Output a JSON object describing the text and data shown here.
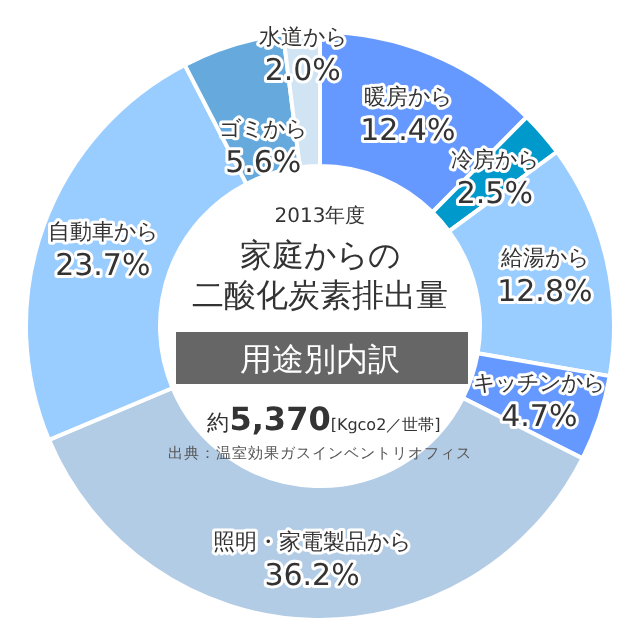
{
  "chart_data": {
    "type": "donut",
    "title": "家庭からの二酸化炭素排出量",
    "annotations": [
      "2013年度",
      "用途別内訳",
      "約5,370[Kgco2／世帯]",
      "出典：温室効果ガスインベントリオフィス"
    ],
    "categories": [
      "暖房から",
      "冷房から",
      "給湯から",
      "キッチンから",
      "照明・家電製品から",
      "自動車から",
      "ゴミから",
      "水道から"
    ],
    "values": [
      12.4,
      2.5,
      12.8,
      4.7,
      36.2,
      23.7,
      5.6,
      2.0
    ],
    "value_labels": [
      "12.4%",
      "2.5%",
      "12.8%",
      "4.7%",
      "36.2%",
      "23.7%",
      "5.6%",
      "2.0%"
    ],
    "colors": [
      "#6699ff",
      "#0099cc",
      "#99ccff",
      "#6699ff",
      "#b3cce6",
      "#99ccff",
      "#66aadd",
      "#d0e4f4"
    ]
  }
}
